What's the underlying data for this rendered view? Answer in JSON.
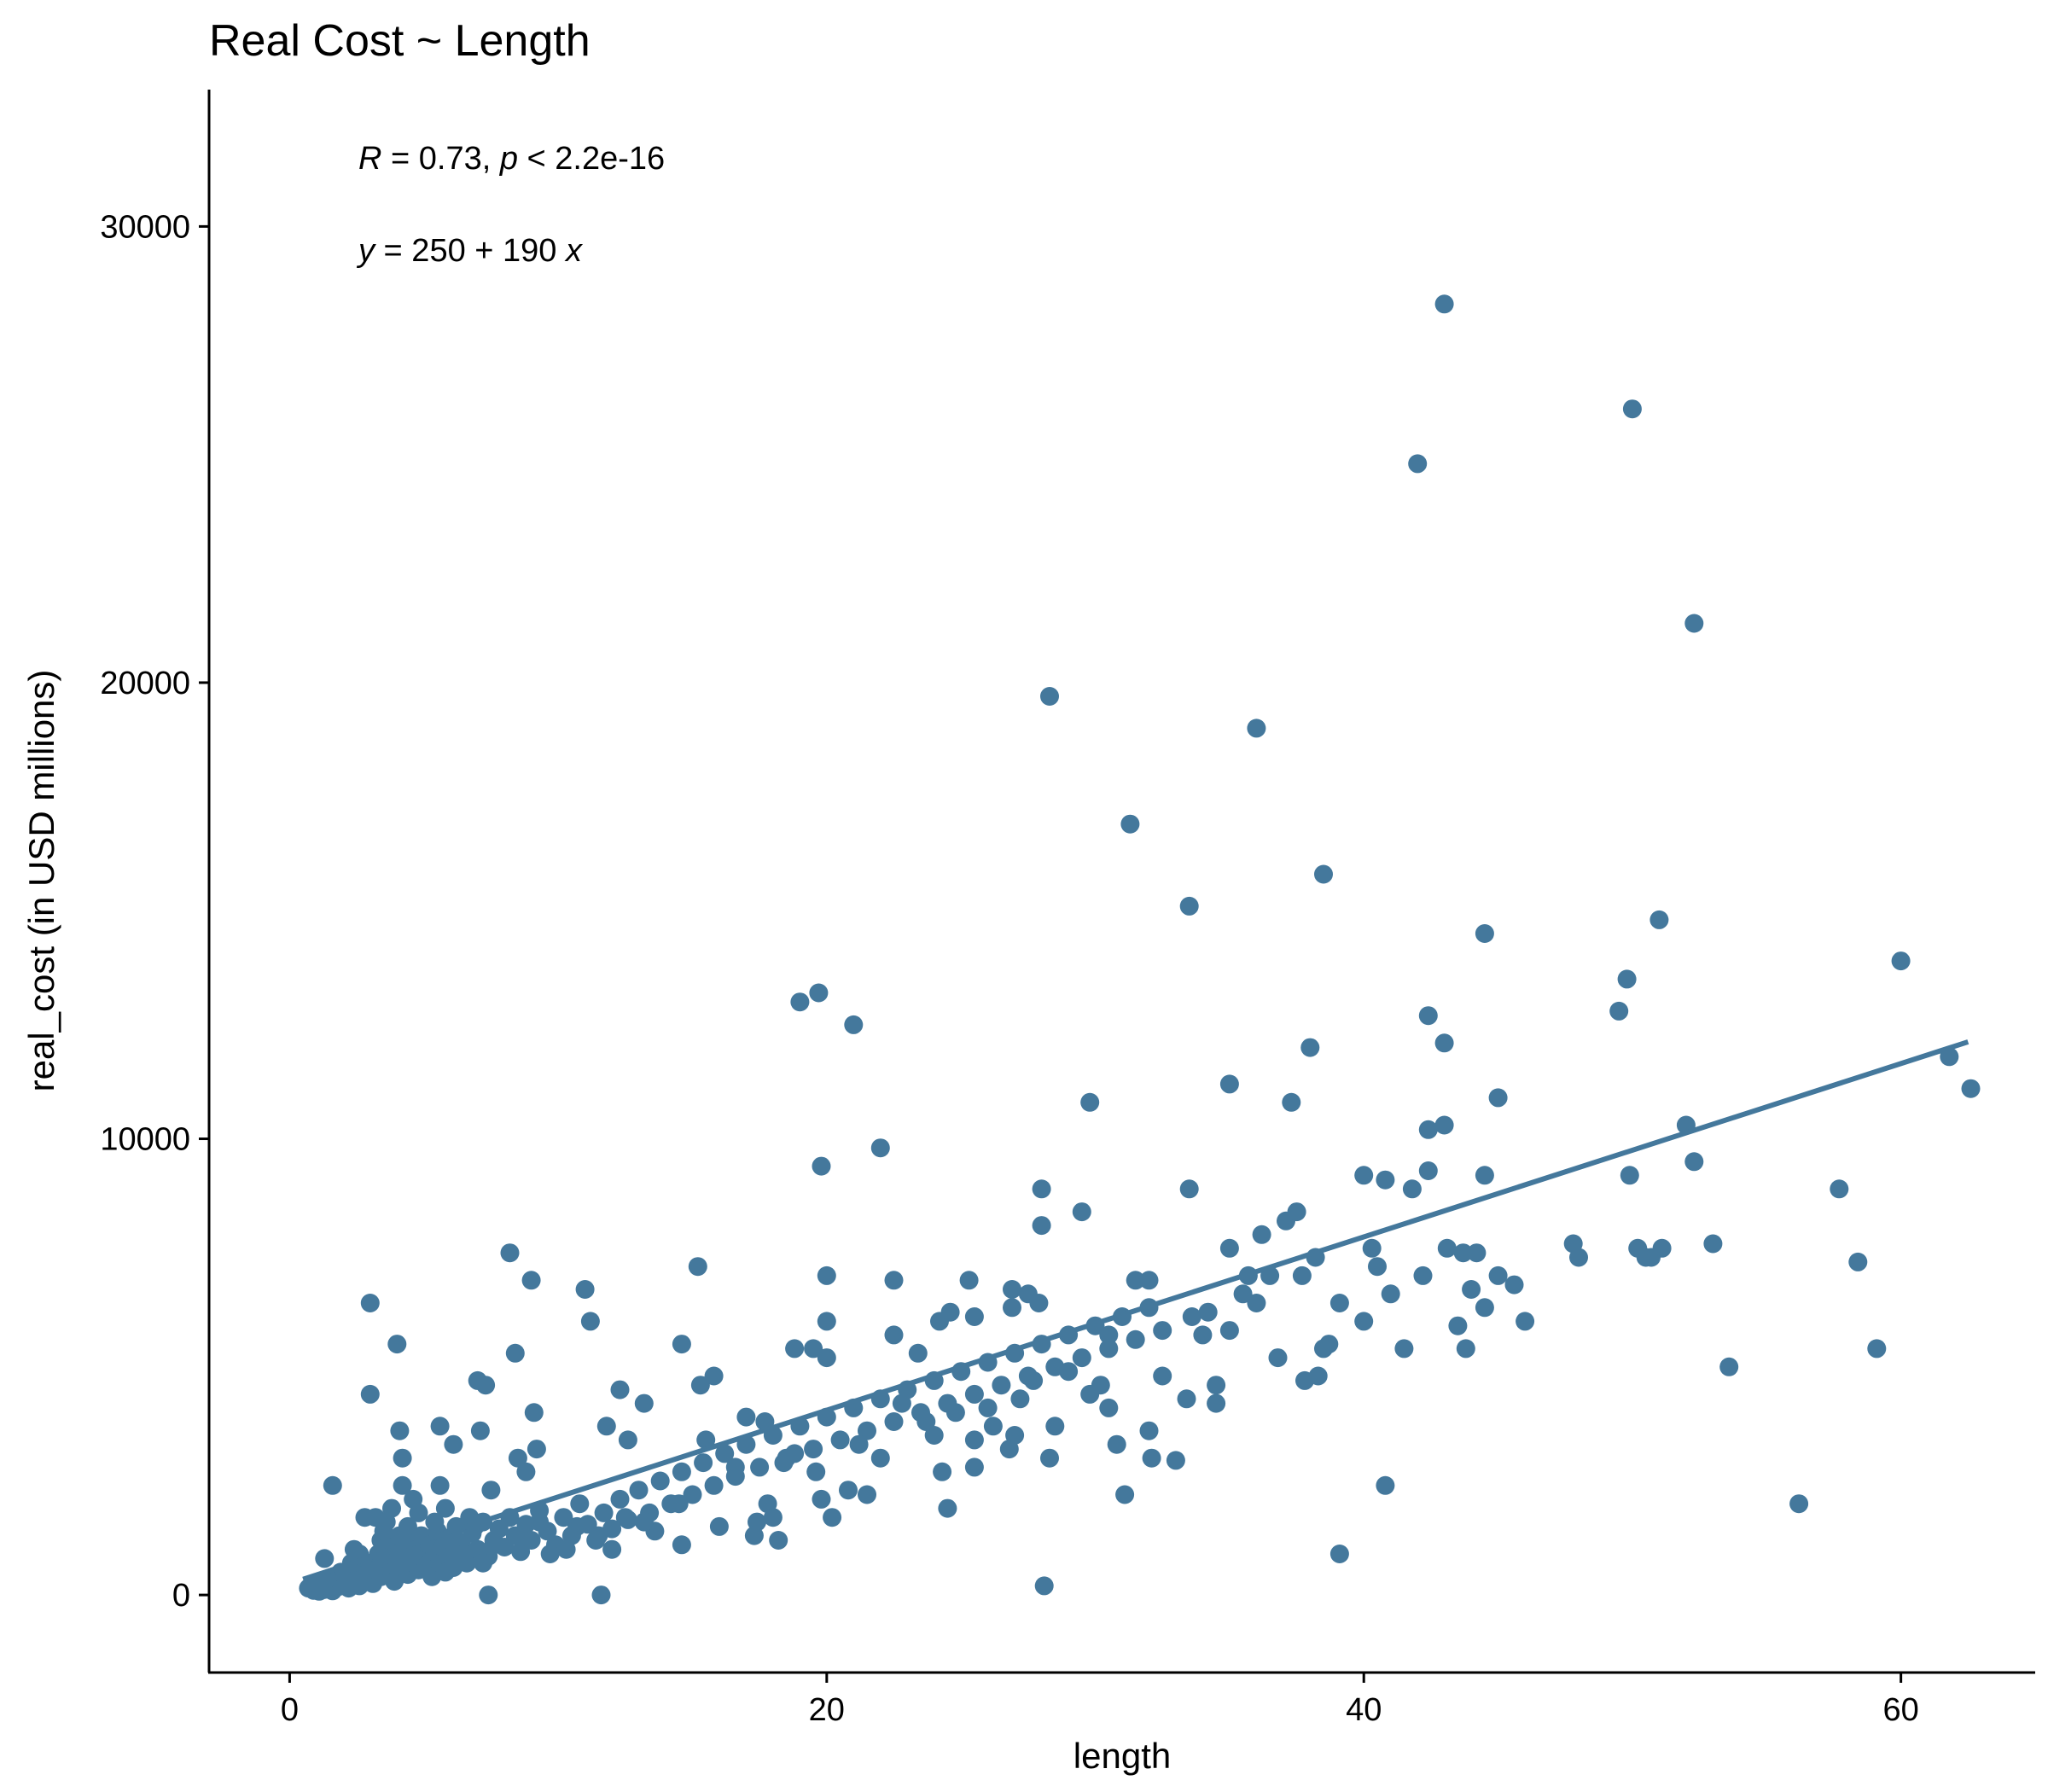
{
  "chart_data": {
    "type": "scatter",
    "title": "Real Cost ~ Length",
    "xlabel": "length",
    "ylabel": "real_cost (in USD millions)",
    "xlim": [
      -3,
      65
    ],
    "ylim": [
      -1700,
      33000
    ],
    "x_ticks": [
      0,
      20,
      40,
      60
    ],
    "y_ticks": [
      0,
      10000,
      20000,
      30000
    ],
    "grid": false,
    "annotations": {
      "r_var": "R",
      "r_rest": " = 0.73, ",
      "p_var": "p",
      "p_rest": " < 2.2e-16",
      "eq_y": "y",
      "eq_mid": " = 250 + 190 ",
      "eq_x": "x"
    },
    "point_color": "#44789c",
    "line_color": "#44789c",
    "fit": {
      "intercept": 250,
      "slope": 190,
      "x_range": [
        0.5,
        62.5
      ]
    },
    "points": [
      [
        0.7,
        150
      ],
      [
        0.9,
        100
      ],
      [
        1.1,
        80
      ],
      [
        1.2,
        200
      ],
      [
        1.3,
        120
      ],
      [
        1.5,
        250
      ],
      [
        1.6,
        90
      ],
      [
        1.7,
        300
      ],
      [
        1.8,
        180
      ],
      [
        2.0,
        400
      ],
      [
        2.1,
        250
      ],
      [
        2.2,
        150
      ],
      [
        2.3,
        500
      ],
      [
        2.5,
        350
      ],
      [
        2.6,
        200
      ],
      [
        2.7,
        600
      ],
      [
        2.8,
        450
      ],
      [
        2.9,
        300
      ],
      [
        3.0,
        700
      ],
      [
        3.1,
        250
      ],
      [
        3.2,
        550
      ],
      [
        3.3,
        900
      ],
      [
        3.4,
        400
      ],
      [
        3.5,
        650
      ],
      [
        3.6,
        800
      ],
      [
        3.7,
        1100
      ],
      [
        3.8,
        500
      ],
      [
        3.9,
        300
      ],
      [
        4.0,
        750
      ],
      [
        4.1,
        950
      ],
      [
        4.2,
        600
      ],
      [
        4.3,
        1200
      ],
      [
        4.4,
        450
      ],
      [
        4.5,
        850
      ],
      [
        4.6,
        700
      ],
      [
        4.7,
        1000
      ],
      [
        4.8,
        550
      ],
      [
        4.9,
        1300
      ],
      [
        5.0,
        800
      ],
      [
        5.1,
        650
      ],
      [
        5.2,
        1100
      ],
      [
        5.3,
        400
      ],
      [
        5.4,
        950
      ],
      [
        5.5,
        1400
      ],
      [
        5.6,
        700
      ],
      [
        5.7,
        1050
      ],
      [
        5.8,
        500
      ],
      [
        5.9,
        1250
      ],
      [
        6.0,
        850
      ],
      [
        6.1,
        600
      ],
      [
        6.2,
        1500
      ],
      [
        6.3,
        950
      ],
      [
        6.4,
        1150
      ],
      [
        6.6,
        700
      ],
      [
        6.8,
        1350
      ],
      [
        7.0,
        1000
      ],
      [
        7.2,
        1600
      ],
      [
        7.4,
        850
      ],
      [
        7.6,
        1200
      ],
      [
        7.8,
        1450
      ],
      [
        8.0,
        1050
      ],
      [
        8.2,
        1700
      ],
      [
        8.4,
        1300
      ],
      [
        8.6,
        950
      ],
      [
        8.8,
        1550
      ],
      [
        9.0,
        1200
      ],
      [
        9.3,
        1850
      ],
      [
        9.6,
        1400
      ],
      [
        9.9,
        1100
      ],
      [
        10.2,
        1700
      ],
      [
        10.5,
        1300
      ],
      [
        10.8,
        2000
      ],
      [
        11.1,
        1550
      ],
      [
        11.4,
        1200
      ],
      [
        11.7,
        1800
      ],
      [
        12.0,
        1450
      ],
      [
        12.3,
        2100
      ],
      [
        12.6,
        1650
      ],
      [
        13.0,
        2300
      ],
      [
        13.4,
        1800
      ],
      [
        13.8,
        2500
      ],
      [
        14.2,
        2000
      ],
      [
        14.6,
        2700
      ],
      [
        15.0,
        2200
      ],
      [
        15.4,
        2900
      ],
      [
        15.8,
        2400
      ],
      [
        16.2,
        3100
      ],
      [
        16.6,
        2600
      ],
      [
        17.0,
        3300
      ],
      [
        17.5,
        2800
      ],
      [
        18.0,
        3500
      ],
      [
        18.5,
        3000
      ],
      [
        19.0,
        3700
      ],
      [
        19.5,
        3200
      ],
      [
        20.0,
        3900
      ],
      [
        20.5,
        3400
      ],
      [
        21.0,
        4100
      ],
      [
        21.5,
        3600
      ],
      [
        22.0,
        4300
      ],
      [
        22.5,
        3800
      ],
      [
        23.0,
        4500
      ],
      [
        23.5,
        4000
      ],
      [
        24.0,
        4700
      ],
      [
        24.5,
        4200
      ],
      [
        25.0,
        4900
      ],
      [
        25.5,
        4400
      ],
      [
        26.0,
        5100
      ],
      [
        26.5,
        4600
      ],
      [
        27.0,
        5300
      ],
      [
        27.5,
        4800
      ],
      [
        28.0,
        5500
      ],
      [
        28.5,
        5000
      ],
      [
        29.0,
        5700
      ],
      [
        29.5,
        5200
      ],
      [
        30.0,
        5900
      ],
      [
        30.5,
        5400
      ],
      [
        31.0,
        6100
      ],
      [
        31.5,
        5600
      ],
      [
        32.0,
        6300
      ],
      [
        32.5,
        5800
      ],
      [
        1.3,
        800
      ],
      [
        2.8,
        1700
      ],
      [
        3.0,
        6400
      ],
      [
        3.0,
        4400
      ],
      [
        3.2,
        1700
      ],
      [
        4.0,
        5500
      ],
      [
        4.1,
        3600
      ],
      [
        4.2,
        3000
      ],
      [
        4.2,
        2400
      ],
      [
        1.6,
        2400
      ],
      [
        5.6,
        3700
      ],
      [
        6.1,
        3300
      ],
      [
        7.0,
        4700
      ],
      [
        7.3,
        4600
      ],
      [
        7.1,
        3600
      ],
      [
        8.2,
        7500
      ],
      [
        8.4,
        5300
      ],
      [
        9.0,
        6900
      ],
      [
        9.1,
        4000
      ],
      [
        9.2,
        3200
      ],
      [
        8.8,
        2700
      ],
      [
        8.5,
        3000
      ],
      [
        11.0,
        6700
      ],
      [
        11.2,
        6000
      ],
      [
        12.3,
        4500
      ],
      [
        11.8,
        3700
      ],
      [
        13.2,
        4200
      ],
      [
        12.6,
        3400
      ],
      [
        14.6,
        5500
      ],
      [
        15.2,
        7200
      ],
      [
        15.3,
        4600
      ],
      [
        15.5,
        3400
      ],
      [
        15.8,
        4800
      ],
      [
        17.0,
        3900
      ],
      [
        17.7,
        3800
      ],
      [
        18.4,
        2900
      ],
      [
        18.8,
        5400
      ],
      [
        19.0,
        13000
      ],
      [
        19.7,
        13200
      ],
      [
        21.0,
        12500
      ],
      [
        19.5,
        5400
      ],
      [
        19.8,
        9400
      ],
      [
        20.0,
        7000
      ],
      [
        20.0,
        6000
      ],
      [
        20.0,
        5200
      ],
      [
        22.0,
        9800
      ],
      [
        22.5,
        6900
      ],
      [
        22.5,
        5700
      ],
      [
        23.4,
        5300
      ],
      [
        24.2,
        6000
      ],
      [
        24.6,
        6200
      ],
      [
        25.3,
        6900
      ],
      [
        25.5,
        6100
      ],
      [
        26.9,
        6700
      ],
      [
        26.9,
        6300
      ],
      [
        27.5,
        6600
      ],
      [
        27.9,
        6400
      ],
      [
        28.0,
        8900
      ],
      [
        28.0,
        8100
      ],
      [
        29.5,
        8400
      ],
      [
        28.3,
        19700
      ],
      [
        29.8,
        10800
      ],
      [
        31.3,
        16900
      ],
      [
        30.5,
        5700
      ],
      [
        31.5,
        6900
      ],
      [
        32.0,
        6900
      ],
      [
        32.5,
        4800
      ],
      [
        33.5,
        15100
      ],
      [
        33.5,
        8900
      ],
      [
        33.6,
        6100
      ],
      [
        34.0,
        5700
      ],
      [
        34.2,
        6200
      ],
      [
        34.5,
        4600
      ],
      [
        34.5,
        4200
      ],
      [
        35.0,
        11200
      ],
      [
        35.0,
        7600
      ],
      [
        35.0,
        5800
      ],
      [
        35.5,
        6600
      ],
      [
        35.7,
        7000
      ],
      [
        36.0,
        19000
      ],
      [
        36.0,
        6400
      ],
      [
        36.2,
        7900
      ],
      [
        36.5,
        7000
      ],
      [
        36.8,
        5200
      ],
      [
        37.1,
        8200
      ],
      [
        37.3,
        10800
      ],
      [
        37.5,
        8400
      ],
      [
        37.7,
        7000
      ],
      [
        37.8,
        4700
      ],
      [
        38.0,
        12000
      ],
      [
        38.2,
        7400
      ],
      [
        38.3,
        4800
      ],
      [
        38.5,
        15800
      ],
      [
        38.5,
        5400
      ],
      [
        38.7,
        5500
      ],
      [
        39.1,
        6400
      ],
      [
        39.1,
        900
      ],
      [
        40.0,
        9200
      ],
      [
        40.0,
        6000
      ],
      [
        40.3,
        7600
      ],
      [
        40.5,
        7200
      ],
      [
        40.8,
        9100
      ],
      [
        40.8,
        2400
      ],
      [
        41.0,
        6600
      ],
      [
        41.5,
        5400
      ],
      [
        41.8,
        8900
      ],
      [
        42.0,
        24800
      ],
      [
        42.2,
        7000
      ],
      [
        42.4,
        12700
      ],
      [
        42.4,
        10200
      ],
      [
        42.4,
        9300
      ],
      [
        43.0,
        28300
      ],
      [
        43.0,
        12100
      ],
      [
        43.0,
        10300
      ],
      [
        43.1,
        7600
      ],
      [
        43.5,
        5900
      ],
      [
        43.7,
        7500
      ],
      [
        43.8,
        5400
      ],
      [
        44.0,
        6700
      ],
      [
        44.2,
        7500
      ],
      [
        44.5,
        14500
      ],
      [
        44.5,
        9200
      ],
      [
        44.5,
        6300
      ],
      [
        45.0,
        10900
      ],
      [
        45.0,
        7000
      ],
      [
        45.6,
        6800
      ],
      [
        46.0,
        6000
      ],
      [
        47.8,
        7700
      ],
      [
        48.0,
        7400
      ],
      [
        49.5,
        12800
      ],
      [
        49.8,
        13500
      ],
      [
        49.9,
        9200
      ],
      [
        50.0,
        26000
      ],
      [
        50.2,
        7600
      ],
      [
        50.5,
        7400
      ],
      [
        50.7,
        7400
      ],
      [
        51.0,
        14800
      ],
      [
        51.1,
        7600
      ],
      [
        52.0,
        10300
      ],
      [
        52.3,
        21300
      ],
      [
        52.3,
        9500
      ],
      [
        53.0,
        7700
      ],
      [
        53.6,
        5000
      ],
      [
        56.2,
        2000
      ],
      [
        57.7,
        8900
      ],
      [
        58.4,
        7300
      ],
      [
        59.1,
        5400
      ],
      [
        60.0,
        13900
      ],
      [
        61.8,
        11800
      ],
      [
        62.6,
        11100
      ],
      [
        28.5,
        3700
      ],
      [
        28.3,
        3000
      ],
      [
        28.1,
        200
      ],
      [
        30.5,
        4100
      ],
      [
        30.8,
        3300
      ],
      [
        31.1,
        2200
      ],
      [
        32.0,
        3600
      ],
      [
        32.1,
        3000
      ],
      [
        33.0,
        2950
      ],
      [
        33.4,
        4300
      ],
      [
        24.0,
        3500
      ],
      [
        24.3,
        2700
      ],
      [
        24.5,
        1900
      ],
      [
        25.5,
        3400
      ],
      [
        25.5,
        2800
      ],
      [
        26.0,
        4100
      ],
      [
        26.8,
        3200
      ],
      [
        27.0,
        3500
      ],
      [
        22.0,
        3000
      ],
      [
        21.5,
        2200
      ],
      [
        20.8,
        2300
      ],
      [
        20.2,
        1700
      ],
      [
        19.8,
        2100
      ],
      [
        19.6,
        2700
      ],
      [
        18.8,
        3100
      ],
      [
        18.2,
        1200
      ],
      [
        18.0,
        1700
      ],
      [
        17.4,
        1600
      ],
      [
        17.3,
        1300
      ],
      [
        17.8,
        2000
      ],
      [
        16.0,
        1500
      ],
      [
        16.6,
        2800
      ],
      [
        14.6,
        1100
      ],
      [
        14.5,
        2000
      ],
      [
        13.6,
        1400
      ],
      [
        13.2,
        1600
      ],
      [
        12.5,
        1700
      ],
      [
        12.0,
        1000
      ],
      [
        11.6,
        0
      ],
      [
        11.5,
        1300
      ],
      [
        10.7,
        1500
      ],
      [
        10.3,
        1000
      ],
      [
        9.7,
        900
      ],
      [
        9.3,
        1600
      ],
      [
        8.7,
        1200
      ],
      [
        7.6,
        1100
      ],
      [
        7.2,
        700
      ],
      [
        6.9,
        1500
      ],
      [
        6.5,
        900
      ],
      [
        6.0,
        1200
      ],
      [
        5.8,
        1900
      ],
      [
        5.6,
        2400
      ],
      [
        5.4,
        1600
      ],
      [
        4.8,
        1800
      ],
      [
        4.6,
        2100
      ],
      [
        4.4,
        1500
      ],
      [
        4.1,
        1300
      ],
      [
        3.8,
        1900
      ],
      [
        3.6,
        1600
      ],
      [
        3.4,
        1200
      ],
      [
        2.6,
        900
      ],
      [
        2.3,
        700
      ],
      [
        1.9,
        500
      ],
      [
        1.4,
        350
      ],
      [
        1.0,
        250
      ],
      [
        2.4,
        1000
      ],
      [
        3.5,
        1400
      ],
      [
        6.7,
        1700
      ],
      [
        7.5,
        2300
      ],
      [
        7.4,
        0
      ],
      [
        21.2,
        3300
      ],
      [
        22.8,
        4200
      ],
      [
        23.7,
        3800
      ],
      [
        24.8,
        4000
      ],
      [
        26.2,
        3700
      ],
      [
        27.2,
        4300
      ],
      [
        27.7,
        4700
      ],
      [
        29.0,
        4900
      ],
      [
        29.8,
        4400
      ],
      [
        30.2,
        4600
      ]
    ]
  }
}
